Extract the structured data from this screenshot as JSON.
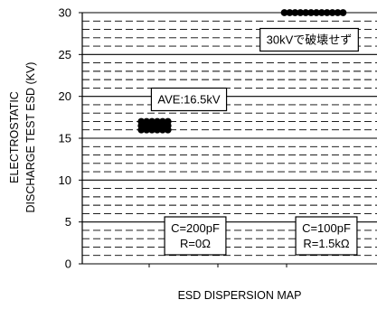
{
  "chart_data": {
    "type": "scatter",
    "title": "",
    "xlabel": "ESD DISPERSION MAP",
    "ylabel_lines": [
      "ELECTROSTATIC",
      "DISCHARGE TEST ESD (KV)"
    ],
    "ylim": [
      0,
      30
    ],
    "yticks": [
      0,
      5,
      10,
      15,
      20,
      25,
      30
    ],
    "major_grid_step": 5,
    "minor_grid_step": 1,
    "series": [
      {
        "condition_lines": [
          "C=200pF",
          "R=0Ω"
        ],
        "annotation": "AVE:16.5kV",
        "points": [
          {
            "y": 17,
            "count": 6
          },
          {
            "y": 16.5,
            "count": 6
          },
          {
            "y": 16,
            "count": 6
          }
        ]
      },
      {
        "condition_lines": [
          "C=100pF",
          "R=1.5kΩ"
        ],
        "annotation": "30kVで破壊せず",
        "points": [
          {
            "y": 30,
            "count": 12
          }
        ]
      }
    ]
  }
}
